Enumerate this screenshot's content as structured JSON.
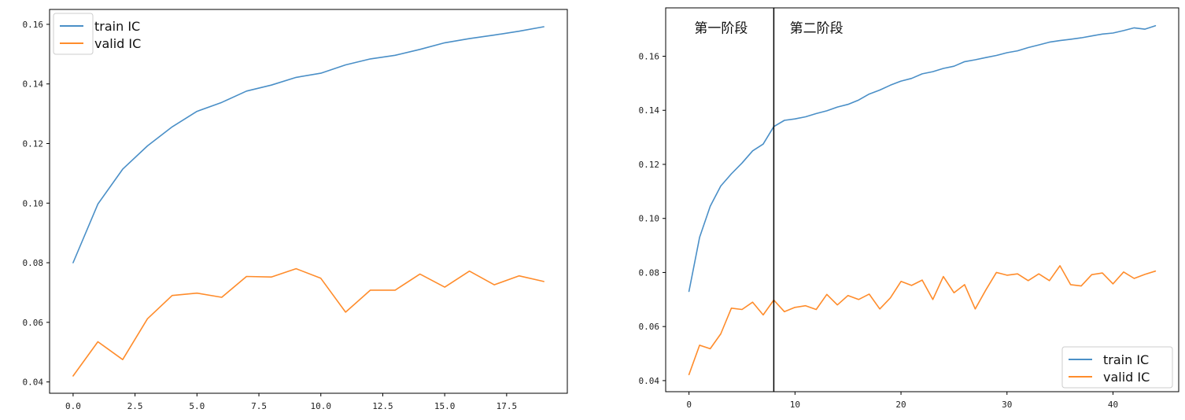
{
  "chart_data": [
    {
      "type": "line",
      "x": [
        0,
        1,
        2,
        3,
        4,
        5,
        6,
        7,
        8,
        9,
        10,
        11,
        12,
        13,
        14,
        15,
        16,
        17,
        18,
        19
      ],
      "series": [
        {
          "name": "train IC",
          "color": "#4a8fc7",
          "values": [
            0.08,
            0.0997,
            0.1114,
            0.1192,
            0.1256,
            0.1308,
            0.1338,
            0.1376,
            0.1396,
            0.1422,
            0.1436,
            0.1464,
            0.1484,
            0.1496,
            0.1516,
            0.1538,
            0.1552,
            0.1564,
            0.1577,
            0.1592
          ]
        },
        {
          "name": "valid IC",
          "color": "#ff8c2b",
          "values": [
            0.042,
            0.0535,
            0.0475,
            0.0612,
            0.069,
            0.0698,
            0.0684,
            0.0754,
            0.0752,
            0.078,
            0.0748,
            0.0634,
            0.0708,
            0.0708,
            0.0762,
            0.0718,
            0.0772,
            0.0726,
            0.0756,
            0.0737
          ]
        }
      ],
      "xlim": [
        -0.95,
        19.95
      ],
      "ylim": [
        0.0362,
        0.165
      ],
      "xticks": [
        0.0,
        2.5,
        5.0,
        7.5,
        10.0,
        12.5,
        15.0,
        17.5
      ],
      "xtick_labels": [
        "0.0",
        "2.5",
        "5.0",
        "7.5",
        "10.0",
        "12.5",
        "15.0",
        "17.5"
      ],
      "yticks": [
        0.04,
        0.06,
        0.08,
        0.1,
        0.12,
        0.14,
        0.16
      ],
      "ytick_labels": [
        "0.04",
        "0.06",
        "0.08",
        "0.10",
        "0.12",
        "0.14",
        "0.16"
      ],
      "legend_position": "upper-left",
      "grid": false
    },
    {
      "type": "line",
      "x": [
        0,
        1,
        2,
        3,
        4,
        5,
        6,
        7,
        8,
        9,
        10,
        11,
        12,
        13,
        14,
        15,
        16,
        17,
        18,
        19,
        20,
        21,
        22,
        23,
        24,
        25,
        26,
        27,
        28,
        29,
        30,
        31,
        32,
        33,
        34,
        35,
        36,
        37,
        38,
        39,
        40,
        41,
        42,
        43,
        44
      ],
      "series": [
        {
          "name": "train IC",
          "color": "#4a8fc7",
          "values": [
            0.073,
            0.093,
            0.1045,
            0.112,
            0.1165,
            0.1205,
            0.125,
            0.1275,
            0.134,
            0.1363,
            0.1368,
            0.1376,
            0.1388,
            0.1398,
            0.1412,
            0.1422,
            0.1438,
            0.146,
            0.1475,
            0.1493,
            0.1508,
            0.1518,
            0.1535,
            0.1543,
            0.1555,
            0.1563,
            0.158,
            0.1587,
            0.1595,
            0.1603,
            0.1613,
            0.162,
            0.1632,
            0.1642,
            0.1652,
            0.1658,
            0.1663,
            0.1668,
            0.1675,
            0.1682,
            0.1686,
            0.1695,
            0.1705,
            0.17,
            0.1713
          ]
        },
        {
          "name": "valid IC",
          "color": "#ff8c2b",
          "values": [
            0.0422,
            0.0531,
            0.0518,
            0.0573,
            0.0668,
            0.0663,
            0.069,
            0.0643,
            0.0698,
            0.0655,
            0.0671,
            0.0677,
            0.0663,
            0.0719,
            0.068,
            0.0715,
            0.07,
            0.072,
            0.0665,
            0.0706,
            0.0767,
            0.0752,
            0.0772,
            0.07,
            0.0785,
            0.0725,
            0.0755,
            0.0665,
            0.0735,
            0.08,
            0.079,
            0.0795,
            0.077,
            0.0795,
            0.077,
            0.0825,
            0.0755,
            0.075,
            0.0792,
            0.0798,
            0.0758,
            0.0802,
            0.0778,
            0.0793,
            0.0805
          ]
        }
      ],
      "xlim": [
        -2.2,
        46.2
      ],
      "ylim": [
        0.0359,
        0.1779
      ],
      "xticks": [
        0,
        10,
        20,
        30,
        40
      ],
      "xtick_labels": [
        "0",
        "10",
        "20",
        "30",
        "40"
      ],
      "yticks": [
        0.04,
        0.06,
        0.08,
        0.1,
        0.12,
        0.14,
        0.16
      ],
      "ytick_labels": [
        "0.04",
        "0.06",
        "0.08",
        "0.10",
        "0.12",
        "0.14",
        "0.16"
      ],
      "vline": {
        "x": 8,
        "color": "#000000"
      },
      "annotations": [
        {
          "text": "第一阶段",
          "x": 0.5,
          "y": 0.1687
        },
        {
          "text": "第二阶段",
          "x": 9.5,
          "y": 0.1687
        }
      ],
      "legend_position": "lower-right",
      "grid": false
    }
  ]
}
